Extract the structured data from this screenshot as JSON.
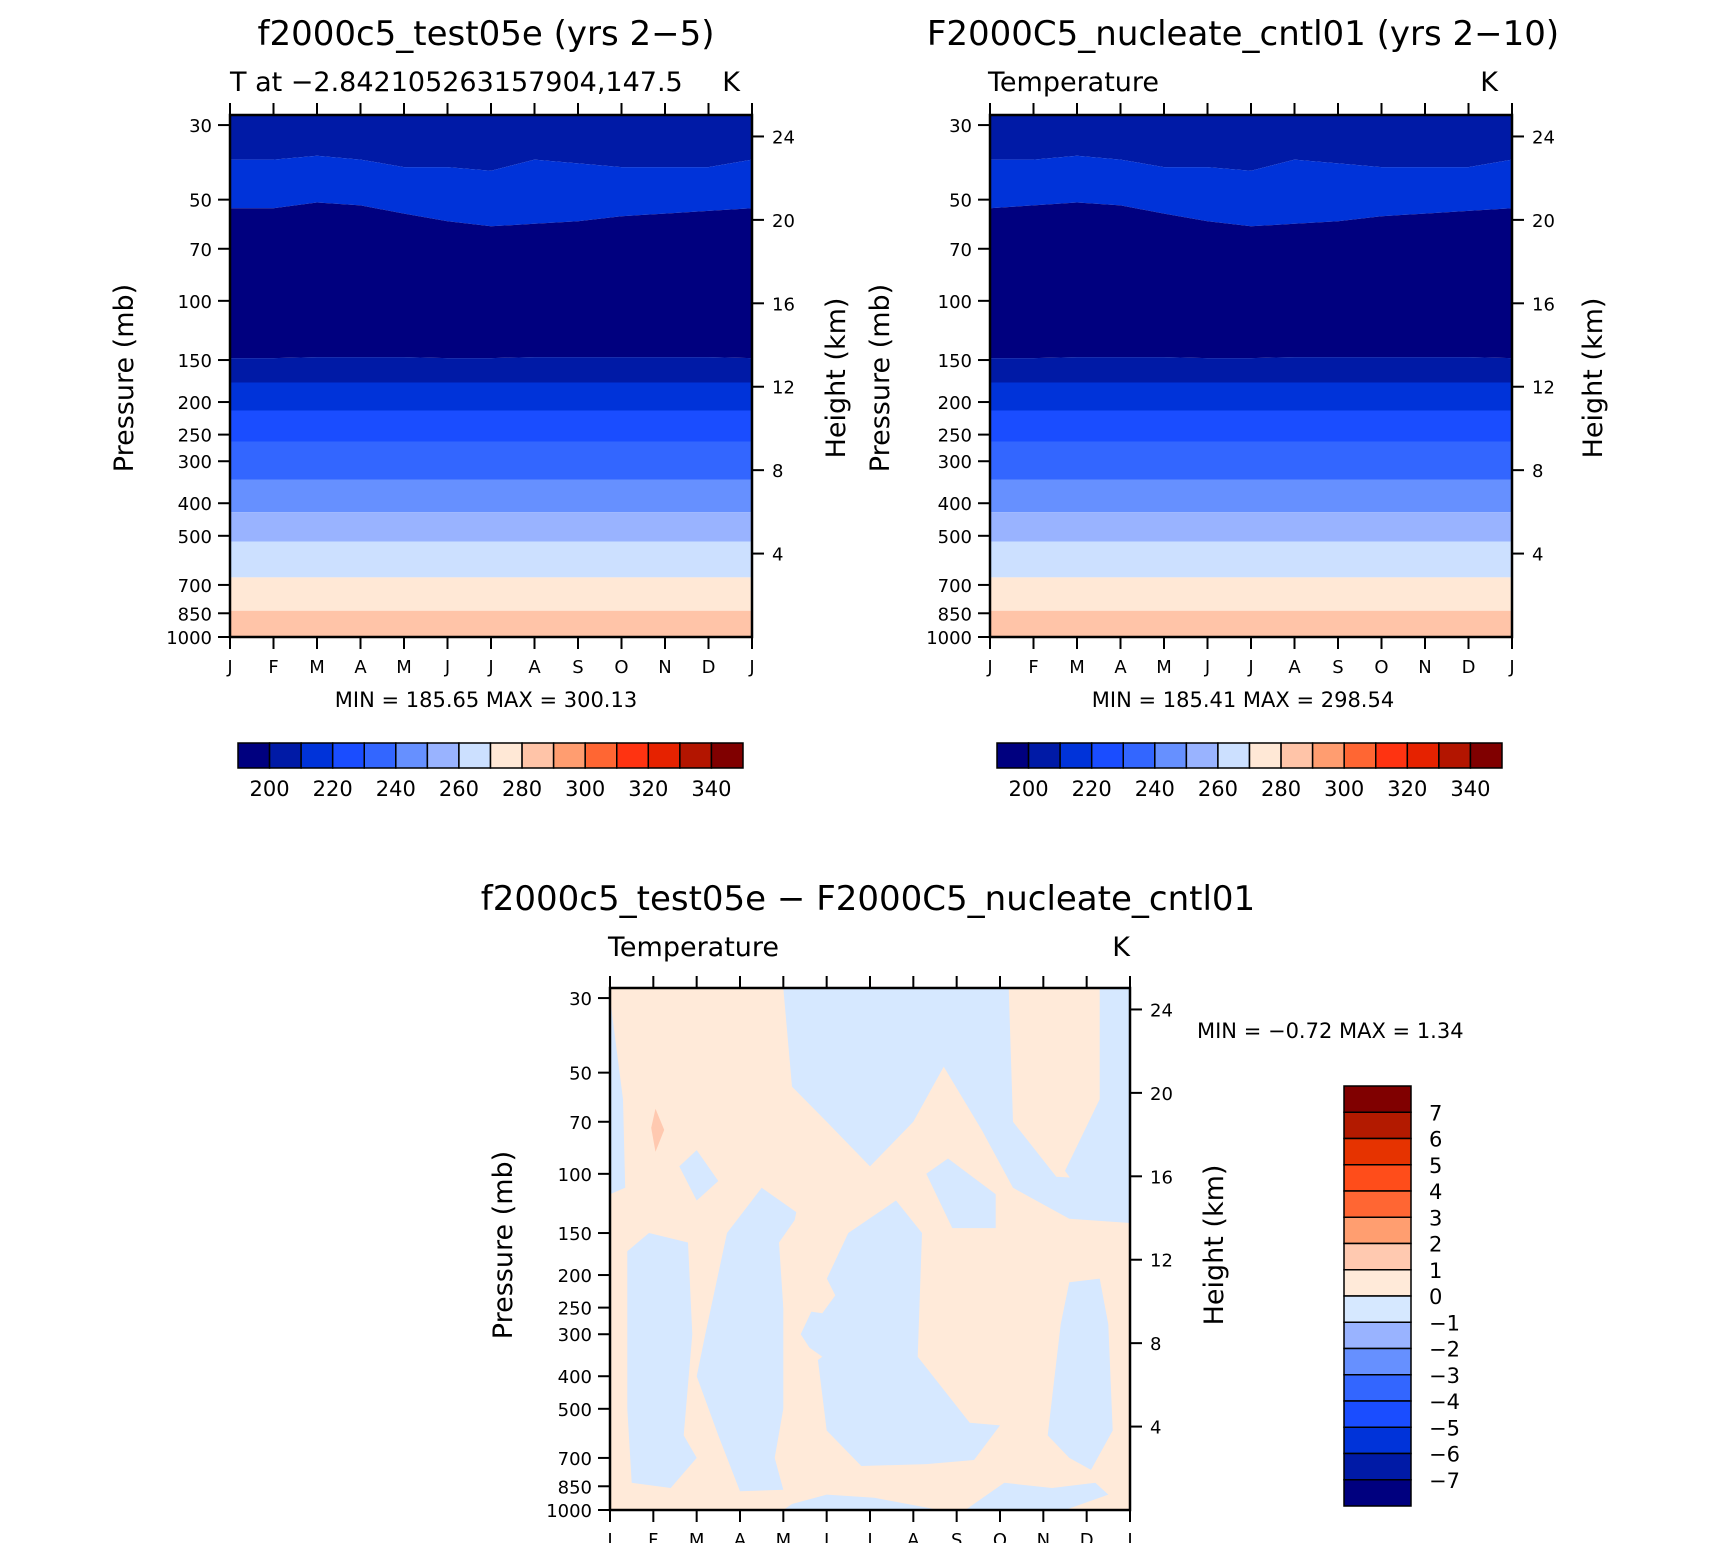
{
  "months": [
    "J",
    "F",
    "M",
    "A",
    "M",
    "J",
    "J",
    "A",
    "S",
    "O",
    "N",
    "D",
    "J"
  ],
  "pressure_ticks": [
    "30",
    "50",
    "70",
    "100",
    "150",
    "200",
    "250",
    "300",
    "400",
    "500",
    "700",
    "850",
    "1000"
  ],
  "height_ticks": [
    "24",
    "20",
    "16",
    "12",
    "8",
    "4"
  ],
  "left_label": "Pressure (mb)",
  "right_label": "Height (km)",
  "units": "K",
  "abs_palette": [
    "#00007f",
    "#001aa6",
    "#0033d9",
    "#1a4dff",
    "#3366ff",
    "#6690ff",
    "#99b3ff",
    "#cce0ff",
    "#ffe8d6",
    "#ffc4a8",
    "#ff9d70",
    "#ff6633",
    "#ff3311",
    "#e62200",
    "#b31500",
    "#800000"
  ],
  "abs_labels": [
    "200",
    "220",
    "240",
    "260",
    "280",
    "300",
    "320",
    "340"
  ],
  "diff_palette": [
    "#00007f",
    "#001aa6",
    "#0033d9",
    "#1a4dff",
    "#3366ff",
    "#6690ff",
    "#99b3ff",
    "#d6e8ff",
    "#ffead9",
    "#ffc9b0",
    "#ff9e70",
    "#ff6633",
    "#ff4d1a",
    "#e63300",
    "#b31a00",
    "#800000"
  ],
  "diff_labels": [
    "7",
    "6",
    "5",
    "4",
    "3",
    "2",
    "1",
    "0",
    "−1",
    "−2",
    "−3",
    "−4",
    "−5",
    "−6",
    "−7"
  ],
  "panels": {
    "a": {
      "title": "f2000c5_test05e (yrs 2−5)",
      "subtitle": "T at −2.842105263157904,147.5",
      "units": "K",
      "min_max": "MIN = 185.65 MAX = 300.13"
    },
    "b": {
      "title": "F2000C5_nucleate_cntl01 (yrs 2−10)",
      "subtitle": "Temperature",
      "units": "K",
      "min_max": "MIN = 185.41 MAX = 298.54"
    },
    "c": {
      "title": "f2000c5_test05e − F2000C5_nucleate_cntl01",
      "subtitle": "Temperature",
      "units": "K",
      "min_max": "MIN = −0.72 MAX = 1.34"
    }
  },
  "chart_data": [
    {
      "type": "heatmap",
      "title": "f2000c5_test05e (yrs 2−5)",
      "subtitle": "T at −2.842105263157904,147.5",
      "units": "K",
      "x": [
        "J",
        "F",
        "M",
        "A",
        "M",
        "J",
        "J",
        "A",
        "S",
        "O",
        "N",
        "D",
        "J"
      ],
      "y_pressure_mb": [
        1000,
        850,
        700,
        500,
        400,
        300,
        250,
        200,
        150,
        100,
        70,
        50,
        30
      ],
      "y_height_km": [
        4,
        8,
        12,
        16,
        20,
        24
      ],
      "contour_levels": [
        200,
        210,
        220,
        230,
        240,
        250,
        260,
        270,
        280,
        290,
        300,
        310,
        320,
        330,
        340
      ],
      "band_boundaries_mb": [
        [
          29,
          44
        ],
        [
          53,
          53,
          51,
          52,
          55,
          58,
          60,
          59,
          58,
          56,
          55,
          54,
          53
        ],
        [
          148,
          148,
          147,
          147,
          147,
          148,
          148,
          147,
          147,
          147,
          147,
          147,
          148
        ],
        [
          175
        ],
        [
          212
        ],
        [
          262
        ],
        [
          340
        ],
        [
          425
        ],
        [
          520
        ],
        [
          665
        ],
        [
          835
        ]
      ],
      "min": 185.65,
      "max": 300.13
    },
    {
      "type": "heatmap",
      "title": "F2000C5_nucleate_cntl01 (yrs 2−10)",
      "subtitle": "Temperature",
      "units": "K",
      "x": [
        "J",
        "F",
        "M",
        "A",
        "M",
        "J",
        "J",
        "A",
        "S",
        "O",
        "N",
        "D",
        "J"
      ],
      "y_pressure_mb": [
        1000,
        850,
        700,
        500,
        400,
        300,
        250,
        200,
        150,
        100,
        70,
        50,
        30
      ],
      "y_height_km": [
        4,
        8,
        12,
        16,
        20,
        24
      ],
      "contour_levels": [
        200,
        210,
        220,
        230,
        240,
        250,
        260,
        270,
        280,
        290,
        300,
        310,
        320,
        330,
        340
      ],
      "band_boundaries_mb": [
        [
          29,
          44
        ],
        [
          53,
          52,
          51,
          52,
          55,
          58,
          60,
          59,
          58,
          56,
          55,
          54,
          53
        ],
        [
          148,
          148,
          147,
          147,
          147,
          148,
          148,
          147,
          147,
          147,
          147,
          147,
          148
        ],
        [
          175
        ],
        [
          212
        ],
        [
          262
        ],
        [
          340
        ],
        [
          425
        ],
        [
          520
        ],
        [
          665
        ],
        [
          835
        ]
      ],
      "min": 185.41,
      "max": 298.54
    },
    {
      "type": "heatmap",
      "title": "f2000c5_test05e − F2000C5_nucleate_cntl01",
      "subtitle": "Temperature",
      "units": "K",
      "x": [
        "J",
        "F",
        "M",
        "A",
        "M",
        "J",
        "J",
        "A",
        "S",
        "O",
        "N",
        "D",
        "J"
      ],
      "y_pressure_mb": [
        1000,
        850,
        700,
        500,
        400,
        300,
        250,
        200,
        150,
        100,
        70,
        50,
        30
      ],
      "y_height_km": [
        4,
        8,
        12,
        16,
        20,
        24
      ],
      "contour_levels": [
        -7,
        -6,
        -5,
        -4,
        -3,
        -2,
        -1,
        0,
        1,
        2,
        3,
        4,
        5,
        6,
        7
      ],
      "sign_pattern": "mostly 0 to 1 K (positive); negative 0 to −1 K regions in the stratosphere from May to October, and in the troposphere around Jan–Feb, Mar–May, Jun–Sep and Nov–Dec; one 1 to 2 K patch near 75 mb in February",
      "min": -0.72,
      "max": 1.34
    }
  ]
}
